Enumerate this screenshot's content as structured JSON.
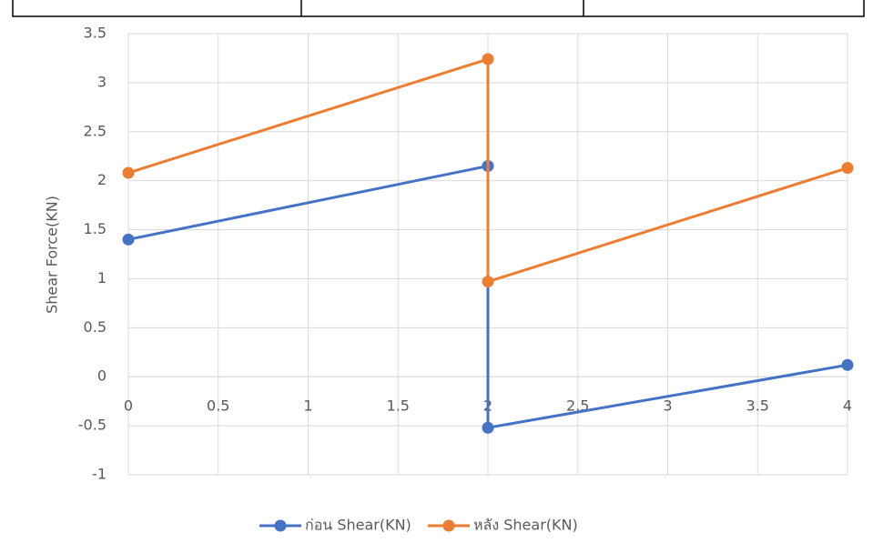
{
  "chart_data": {
    "type": "line",
    "y_label": "Shear Force(KN)",
    "series": [
      {
        "name": "ก่อน Shear(KN)",
        "color": "#4472c4",
        "x": [
          0,
          2,
          2,
          4
        ],
        "values": [
          1.4,
          2.15,
          -0.52,
          0.12
        ]
      },
      {
        "name": "หลัง Shear(KN)",
        "color": "#ed7d31",
        "x": [
          0,
          2,
          2,
          4
        ],
        "values": [
          2.08,
          3.24,
          0.97,
          2.13
        ]
      }
    ],
    "xlim": [
      0,
      4
    ],
    "xticks": [
      0,
      0.5,
      1,
      1.5,
      2,
      2.5,
      3,
      3.5,
      4
    ],
    "ylim": [
      -1,
      3.5
    ],
    "yticks": [
      -1,
      -0.5,
      0,
      0.5,
      1,
      1.5,
      2,
      2.5,
      3,
      3.5
    ],
    "grid": true,
    "legend": "bottom"
  }
}
